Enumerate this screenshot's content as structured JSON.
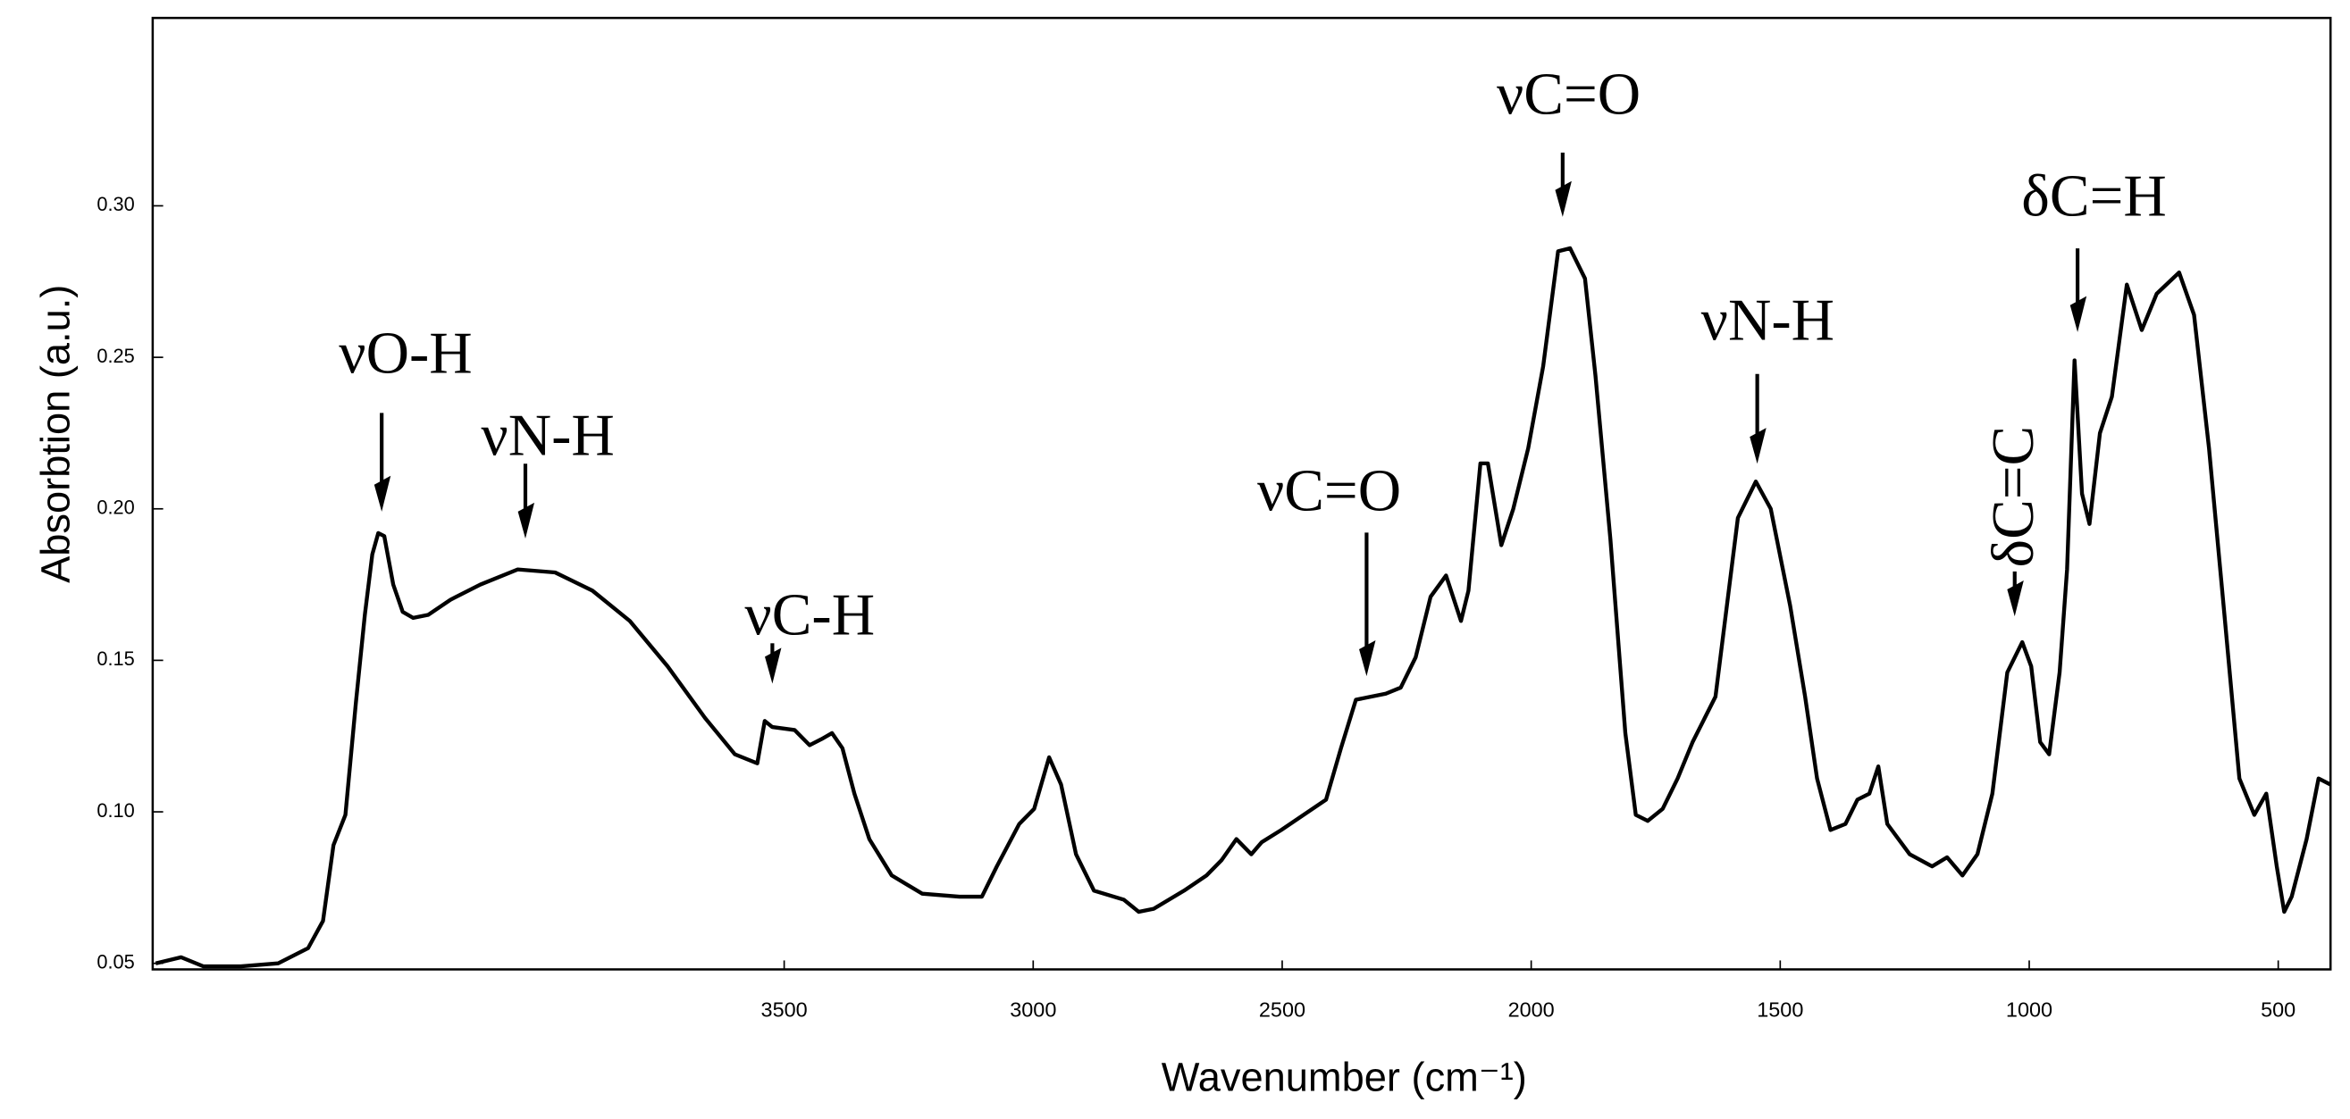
{
  "chart_data": {
    "type": "line",
    "y_label": "Absorbtion (a.u.)",
    "x_label": "Wavenumber (cm⁻¹)",
    "xlim": [
      4768,
      395
    ],
    "ylim": [
      0.048,
      0.362
    ],
    "xticks": [
      3500,
      3000,
      2500,
      2000,
      1500,
      1000,
      500
    ],
    "yticks": [
      0.05,
      {
        "value": 0.1,
        "label": "0.10"
      },
      0.15,
      {
        "value": 0.2,
        "label": "0.20"
      },
      0.25,
      {
        "value": 0.3,
        "label": "0.30"
      }
    ],
    "color": "#000000",
    "annotations": [
      {
        "text": "νO-H"
      },
      {
        "text": "νN-H"
      },
      {
        "text": "νC-H"
      },
      {
        "text": "νC=O"
      },
      {
        "text": "νC=O"
      },
      {
        "text": "νN-H"
      },
      {
        "text": "δC=C"
      },
      {
        "text": "δC=H"
      }
    ],
    "x": [
      4762,
      4711,
      4666,
      4591,
      4516,
      4456,
      4426,
      4405,
      4381,
      4360,
      4342,
      4327,
      4315,
      4303,
      4285,
      4266,
      4245,
      4215,
      4170,
      4110,
      4035,
      3960,
      3885,
      3810,
      3734,
      3659,
      3599,
      3554,
      3539,
      3524,
      3479,
      3449,
      3425,
      3404,
      3383,
      3359,
      3329,
      3284,
      3223,
      3148,
      3103,
      3073,
      3028,
      2998,
      2968,
      2944,
      2914,
      2878,
      2818,
      2788,
      2758,
      2697,
      2652,
      2622,
      2592,
      2562,
      2541,
      2502,
      2457,
      2412,
      2382,
      2352,
      2322,
      2292,
      2262,
      2232,
      2202,
      2171,
      2141,
      2126,
      2102,
      2087,
      2060,
      2036,
      2006,
      1976,
      1946,
      1922,
      1892,
      1871,
      1841,
      1811,
      1790,
      1766,
      1736,
      1706,
      1676,
      1630,
      1585,
      1549,
      1519,
      1480,
      1450,
      1426,
      1399,
      1369,
      1345,
      1321,
      1303,
      1285,
      1240,
      1195,
      1165,
      1134,
      1104,
      1074,
      1044,
      1014,
      996,
      978,
      960,
      939,
      924,
      909,
      894,
      879,
      858,
      834,
      804,
      774,
      744,
      699,
      669,
      639,
      608,
      578,
      548,
      524,
      503,
      488,
      473,
      443,
      419,
      395
    ],
    "values": [
      0.05,
      0.052,
      0.049,
      0.049,
      0.05,
      0.055,
      0.064,
      0.089,
      0.099,
      0.136,
      0.165,
      0.185,
      0.192,
      0.191,
      0.175,
      0.166,
      0.164,
      0.165,
      0.17,
      0.175,
      0.18,
      0.179,
      0.173,
      0.163,
      0.148,
      0.131,
      0.119,
      0.116,
      0.13,
      0.128,
      0.127,
      0.122,
      0.124,
      0.126,
      0.121,
      0.106,
      0.091,
      0.079,
      0.073,
      0.072,
      0.072,
      0.082,
      0.096,
      0.101,
      0.118,
      0.109,
      0.086,
      0.074,
      0.071,
      0.067,
      0.068,
      0.074,
      0.079,
      0.084,
      0.091,
      0.086,
      0.09,
      0.094,
      0.099,
      0.104,
      0.121,
      0.137,
      0.138,
      0.139,
      0.141,
      0.151,
      0.171,
      0.178,
      0.163,
      0.173,
      0.215,
      0.215,
      0.188,
      0.2,
      0.22,
      0.247,
      0.285,
      0.286,
      0.276,
      0.244,
      0.19,
      0.126,
      0.099,
      0.097,
      0.101,
      0.111,
      0.123,
      0.138,
      0.197,
      0.209,
      0.2,
      0.168,
      0.138,
      0.111,
      0.094,
      0.096,
      0.104,
      0.106,
      0.115,
      0.096,
      0.086,
      0.082,
      0.085,
      0.079,
      0.086,
      0.106,
      0.146,
      0.156,
      0.148,
      0.123,
      0.119,
      0.146,
      0.18,
      0.249,
      0.205,
      0.195,
      0.225,
      0.237,
      0.274,
      0.259,
      0.271,
      0.278,
      0.264,
      0.22,
      0.165,
      0.111,
      0.099,
      0.106,
      0.082,
      0.067,
      0.072,
      0.091,
      0.111,
      0.109
    ]
  }
}
